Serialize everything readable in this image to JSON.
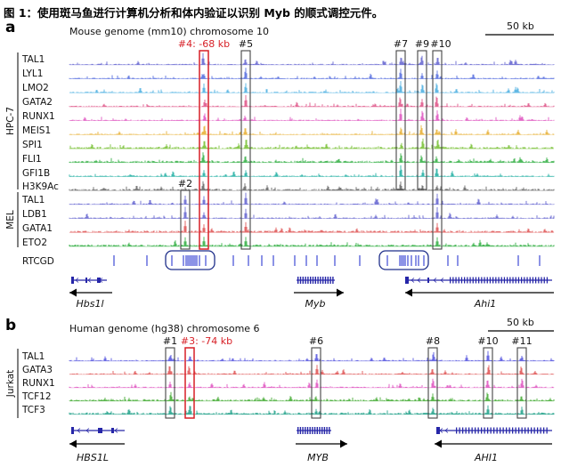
{
  "caption": "图 1：使用斑马鱼进行计算机分析和体内验证以识别 Myb 的顺式调控元件。",
  "panel_a": {
    "letter": "a",
    "header": "Mouse genome (mm10) chromosome 10",
    "scale": "50 kb",
    "hpc_group": "HPC-7",
    "mel_group": "MEL",
    "hpc_tracks": [
      {
        "name": "TAL1",
        "color": "#6a6ad2"
      },
      {
        "name": "LYL1",
        "color": "#5a72e0"
      },
      {
        "name": "LMO2",
        "color": "#52b2e2"
      },
      {
        "name": "GATA2",
        "color": "#e05a8c"
      },
      {
        "name": "RUNX1",
        "color": "#e05ac2"
      },
      {
        "name": "MEIS1",
        "color": "#e8b23a"
      },
      {
        "name": "SPI1",
        "color": "#7cc23a"
      },
      {
        "name": "FLI1",
        "color": "#3ab24a"
      },
      {
        "name": "GFI1B",
        "color": "#28b2a6"
      },
      {
        "name": "H3K9Ac",
        "color": "#6a6a6a"
      }
    ],
    "mel_tracks": [
      {
        "name": "TAL1",
        "color": "#6a6ad2"
      },
      {
        "name": "LDB1",
        "color": "#6a6ad2"
      },
      {
        "name": "GATA1",
        "color": "#e05a5a"
      },
      {
        "name": "ETO2",
        "color": "#3ab24a"
      }
    ],
    "rtcgd": "RTCGD",
    "regions": [
      {
        "label": "#4: -68 kb",
        "red": true
      },
      {
        "label": "#5",
        "red": false
      },
      {
        "label": "#7",
        "red": false
      },
      {
        "label": "#9",
        "red": false
      },
      {
        "label": "#10",
        "red": false
      },
      {
        "label": "#2",
        "red": false
      }
    ],
    "genes": [
      "Hbs1l",
      "Myb",
      "Ahi1"
    ]
  },
  "panel_b": {
    "letter": "b",
    "header": "Human genome (hg38) chromosome 6",
    "scale": "50 kb",
    "group": "Jurkat",
    "tracks": [
      {
        "name": "TAL1",
        "color": "#5a5ae0"
      },
      {
        "name": "GATA3",
        "color": "#e05a5a"
      },
      {
        "name": "RUNX1",
        "color": "#e05ac2"
      },
      {
        "name": "TCF12",
        "color": "#4aae3a"
      },
      {
        "name": "TCF3",
        "color": "#2aa58e"
      }
    ],
    "regions": [
      {
        "label": "#1",
        "red": false
      },
      {
        "label": "#3: -74 kb",
        "red": true
      },
      {
        "label": "#6",
        "red": false
      },
      {
        "label": "#8",
        "red": false
      },
      {
        "label": "#10",
        "red": false
      },
      {
        "label": "#11",
        "red": false
      }
    ],
    "genes": [
      "HBS1L",
      "MYB",
      "AHI1"
    ]
  }
}
